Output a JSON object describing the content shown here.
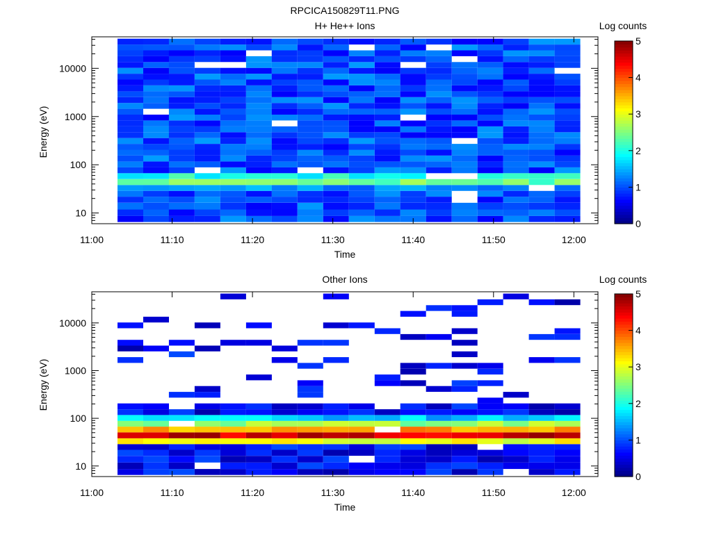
{
  "figure": {
    "title": "RPCICA150829T11.PNG"
  },
  "colors": {
    "colormap": [
      "#00007f",
      "#0000ff",
      "#007fff",
      "#00ffff",
      "#7fff7f",
      "#ffff00",
      "#ff7f00",
      "#ff0000",
      "#7f0000"
    ],
    "axis": "#000000",
    "background": "#ffffff"
  },
  "chart_data": [
    {
      "type": "heatmap",
      "title": "H+ He++ Ions",
      "xlabel": "Time",
      "ylabel": "Energy (eV)",
      "x_ticks": [
        "11:00",
        "11:10",
        "11:20",
        "11:30",
        "11:40",
        "11:50",
        "12:00"
      ],
      "y_ticks": [
        "10",
        "100",
        "1000",
        "10000"
      ],
      "y_scale": "log",
      "ylim": [
        6,
        45000
      ],
      "xlim_minutes": [
        0,
        63
      ],
      "colorbar": {
        "label": "Log counts",
        "range": [
          0,
          5
        ],
        "ticks": [
          "0",
          "1",
          "2",
          "3",
          "4",
          "5"
        ]
      },
      "time_bins_start_minutes": [
        3.2,
        6.4,
        9.6,
        12.8,
        16.0,
        19.2,
        22.4,
        25.6,
        28.8,
        32.0,
        35.2,
        38.4,
        41.6,
        44.8,
        48.0,
        51.2,
        54.4,
        57.6
      ],
      "time_bin_width_minutes": 3.2,
      "energy_bins_eV": [
        7.5,
        10,
        14,
        19,
        25,
        33,
        44,
        58,
        77,
        102,
        135,
        178,
        236,
        312,
        412,
        545,
        720,
        952,
        1260,
        1665,
        2200,
        2910,
        3845,
        5080,
        6720,
        8880,
        11740,
        15520,
        20510,
        27110,
        35840
      ],
      "background_level": 1.0,
      "features": [
        {
          "energy_eV": 44,
          "level": 2.4
        },
        {
          "energy_eV": 58,
          "level": 2.0
        },
        {
          "energy_eV": 33,
          "level": 1.3
        }
      ]
    },
    {
      "type": "heatmap",
      "title": "Other Ions",
      "xlabel": "Time",
      "ylabel": "Energy (eV)",
      "x_ticks": [
        "11:00",
        "11:10",
        "11:20",
        "11:30",
        "11:40",
        "11:50",
        "12:00"
      ],
      "y_ticks": [
        "10",
        "100",
        "1000",
        "10000"
      ],
      "y_scale": "log",
      "ylim": [
        6,
        45000
      ],
      "xlim_minutes": [
        0,
        63
      ],
      "colorbar": {
        "label": "Log counts",
        "range": [
          0,
          5
        ],
        "ticks": [
          "0",
          "1",
          "2",
          "3",
          "4",
          "5"
        ]
      },
      "time_bins_start_minutes": [
        3.2,
        6.4,
        9.6,
        12.8,
        16.0,
        19.2,
        22.4,
        25.6,
        28.8,
        32.0,
        35.2,
        38.4,
        41.6,
        44.8,
        48.0,
        51.2,
        54.4,
        57.6
      ],
      "time_bin_width_minutes": 3.2,
      "energy_bins_eV": [
        7.5,
        10,
        14,
        19,
        25,
        33,
        44,
        58,
        77,
        102,
        135,
        178,
        236,
        312,
        412,
        545,
        720,
        952,
        1260,
        1665,
        2200,
        2910,
        3845,
        5080,
        6720,
        8880,
        11740,
        15520,
        20510,
        27110,
        35840
      ],
      "background_level": 0.6,
      "features": [
        {
          "energy_eV": 44,
          "level": 4.6
        },
        {
          "energy_eV": 58,
          "level": 3.6
        },
        {
          "energy_eV": 77,
          "level": 2.6
        },
        {
          "energy_eV": 33,
          "level": 3.0
        },
        {
          "energy_eV": 102,
          "level": 1.6
        }
      ]
    }
  ]
}
